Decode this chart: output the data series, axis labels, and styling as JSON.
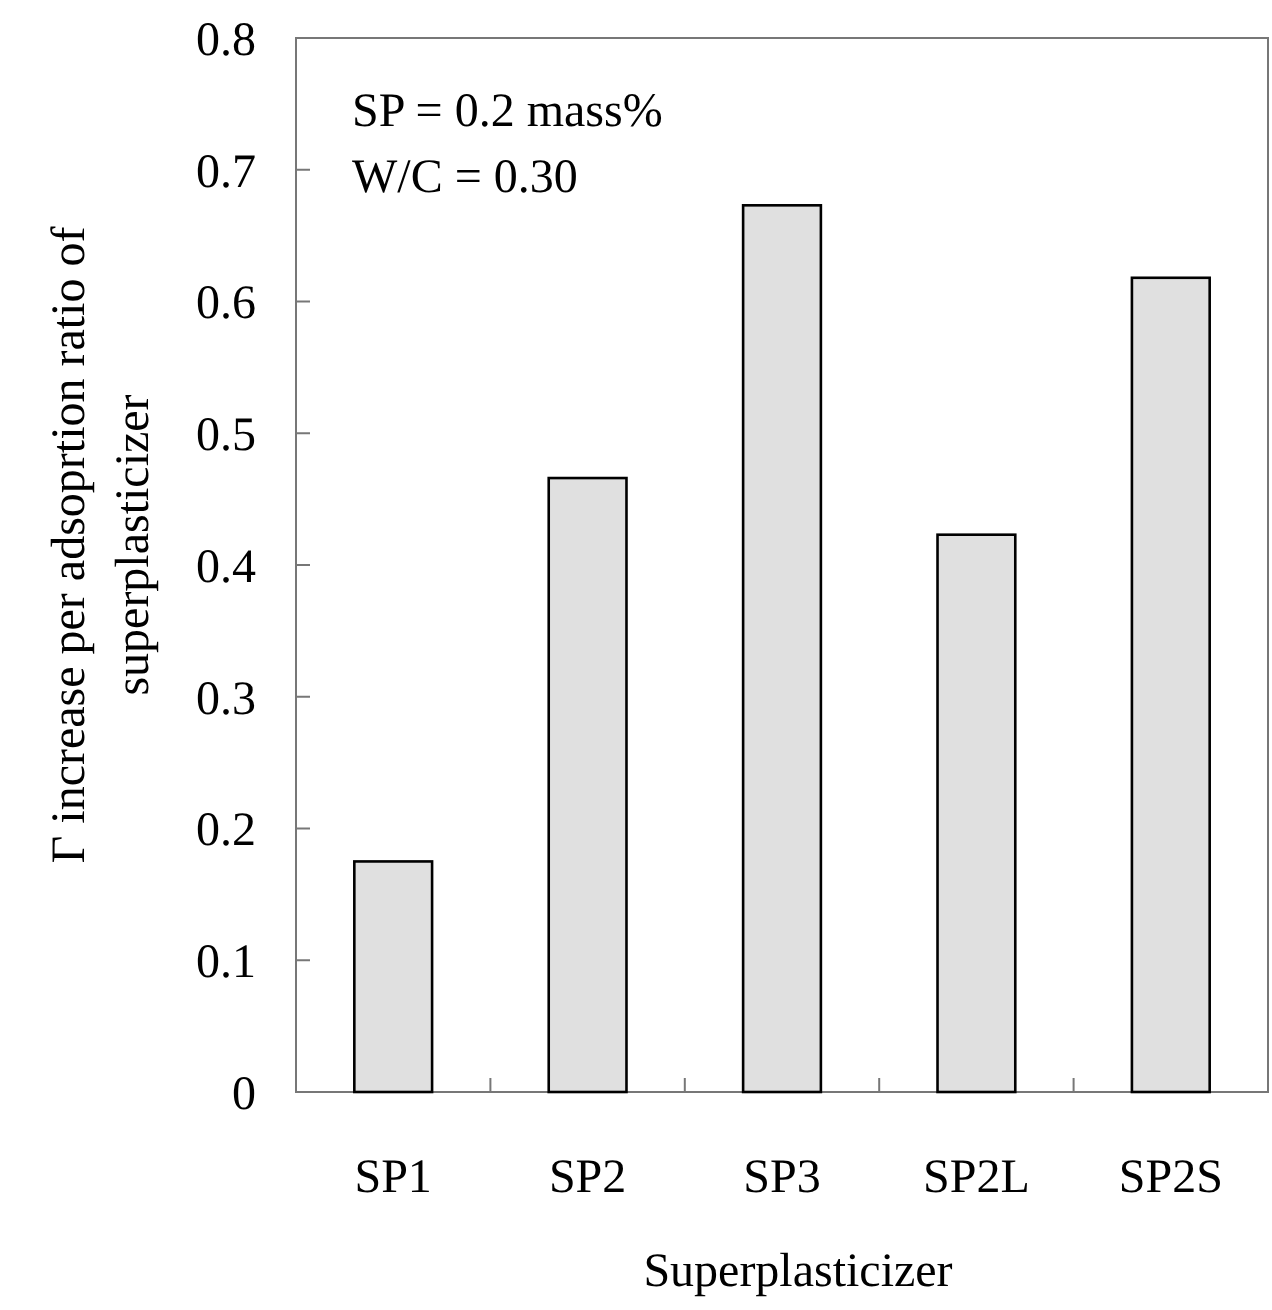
{
  "chart_data": {
    "type": "bar",
    "xlabel": "Superplasticizer",
    "ylabel": "Γ increase per adsoprtion ratio of\nsuperplasticizer",
    "categories": [
      "SP1",
      "SP2",
      "SP3",
      "SP2L",
      "SP2S"
    ],
    "values": [
      0.175,
      0.466,
      0.673,
      0.423,
      0.618
    ],
    "color": "#e0e0e0",
    "ylim": [
      0,
      0.8
    ],
    "yticks": [
      {
        "value": 0,
        "label": "0"
      },
      0.1,
      0.2,
      0.3,
      0.4,
      0.5,
      0.6,
      0.7,
      0.8
    ],
    "annotations": [
      "SP = 0.2 mass%",
      "W/C = 0.30"
    ],
    "grid": false
  }
}
